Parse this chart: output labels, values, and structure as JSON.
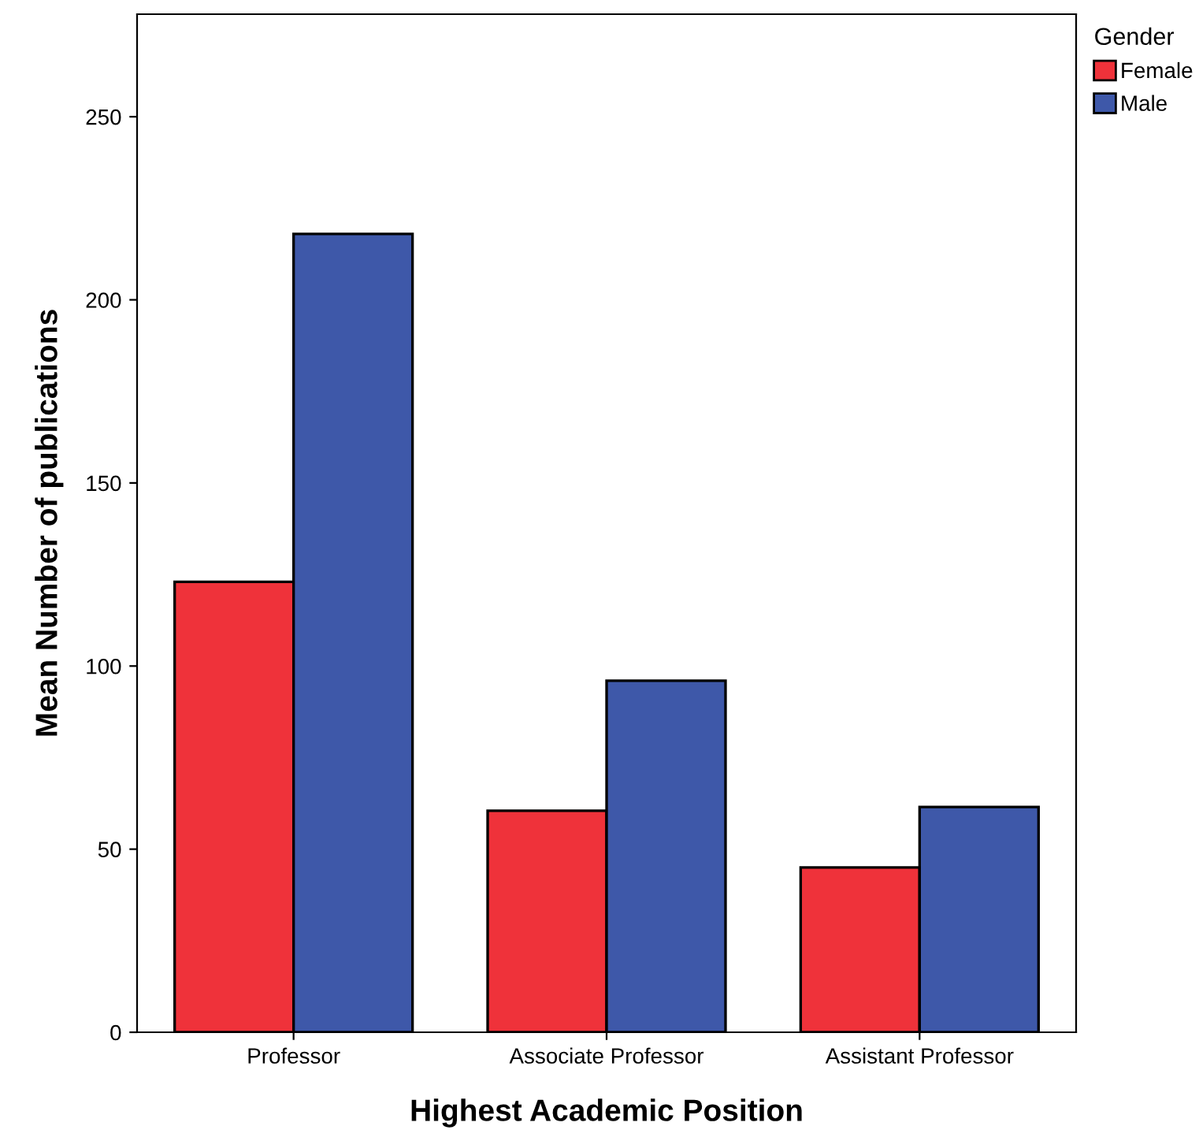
{
  "chart_data": {
    "type": "bar",
    "xlabel": "Highest Academic Position",
    "ylabel": "Mean Number of publications",
    "legend_title": "Gender",
    "categories": [
      "Professor",
      "Associate Professor",
      "Assistant Professor"
    ],
    "series": [
      {
        "name": "Female",
        "color": "#ef323a",
        "values": [
          123,
          60.5,
          45
        ]
      },
      {
        "name": "Male",
        "color": "#3e58a9",
        "values": [
          218,
          96,
          61.5
        ]
      }
    ],
    "ylim": [
      0,
      278
    ],
    "yticks": [
      0,
      50,
      100,
      150,
      200,
      250
    ],
    "grid": false,
    "legend": "top right"
  }
}
